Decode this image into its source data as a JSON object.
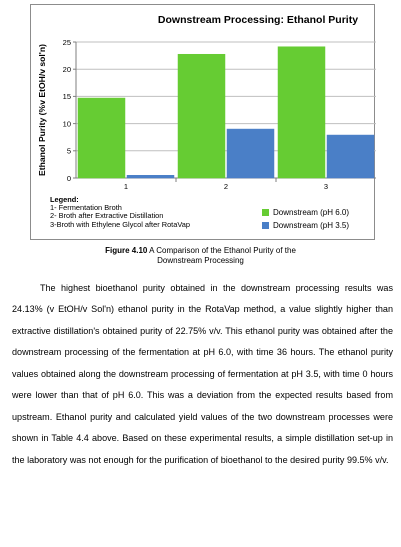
{
  "chart_data": {
    "type": "bar",
    "title": "Downstream Processing: Ethanol Purity",
    "ylabel": "Ethanol Purity (%v EtOH/v sol'n)",
    "xlabel": "",
    "categories": [
      "1",
      "2",
      "3"
    ],
    "ylim": [
      0,
      25
    ],
    "yticks": [
      0,
      5,
      10,
      15,
      20,
      25
    ],
    "grid": true,
    "series": [
      {
        "name": "Downstream (pH 6.0)",
        "color": "#66cc33",
        "values": [
          14.7,
          22.75,
          24.13
        ]
      },
      {
        "name": "Downstream (pH 3.5)",
        "color": "#4a7fc7",
        "values": [
          0.5,
          9.0,
          7.9
        ]
      }
    ],
    "legend_position": "bottom-right",
    "legend_note": {
      "heading": "Legend:",
      "items": [
        "1- Fermentation Broth",
        "2- Broth after Extractive Distillation",
        "3-Broth with Ethylene Glycol after RotaVap"
      ]
    }
  },
  "caption": {
    "label": "Figure 4.10",
    "text": " A Comparison of the Ethanol Purity of the",
    "line2": "Downstream Processing"
  },
  "paragraph": "The highest bioethanol purity obtained in the downstream processing results was 24.13% (v EtOH/v Sol'n) ethanol purity in the RotaVap method, a value slightly higher than extractive distillation's obtained purity of 22.75% v/v. This ethanol purity was obtained after the downstream processing of the fermentation at pH 6.0, with time 36 hours. The ethanol purity values obtained along the downstream processing of fermentation at pH 3.5, with time 0 hours were lower than that of pH 6.0. This was a deviation from the expected results based from upstream. Ethanol purity and calculated yield values of the two downstream processes were shown in Table 4.4 above. Based on these experimental results, a simple distillation set-up in the laboratory was not enough for the purification of bioethanol to the desired purity 99.5% v/v."
}
